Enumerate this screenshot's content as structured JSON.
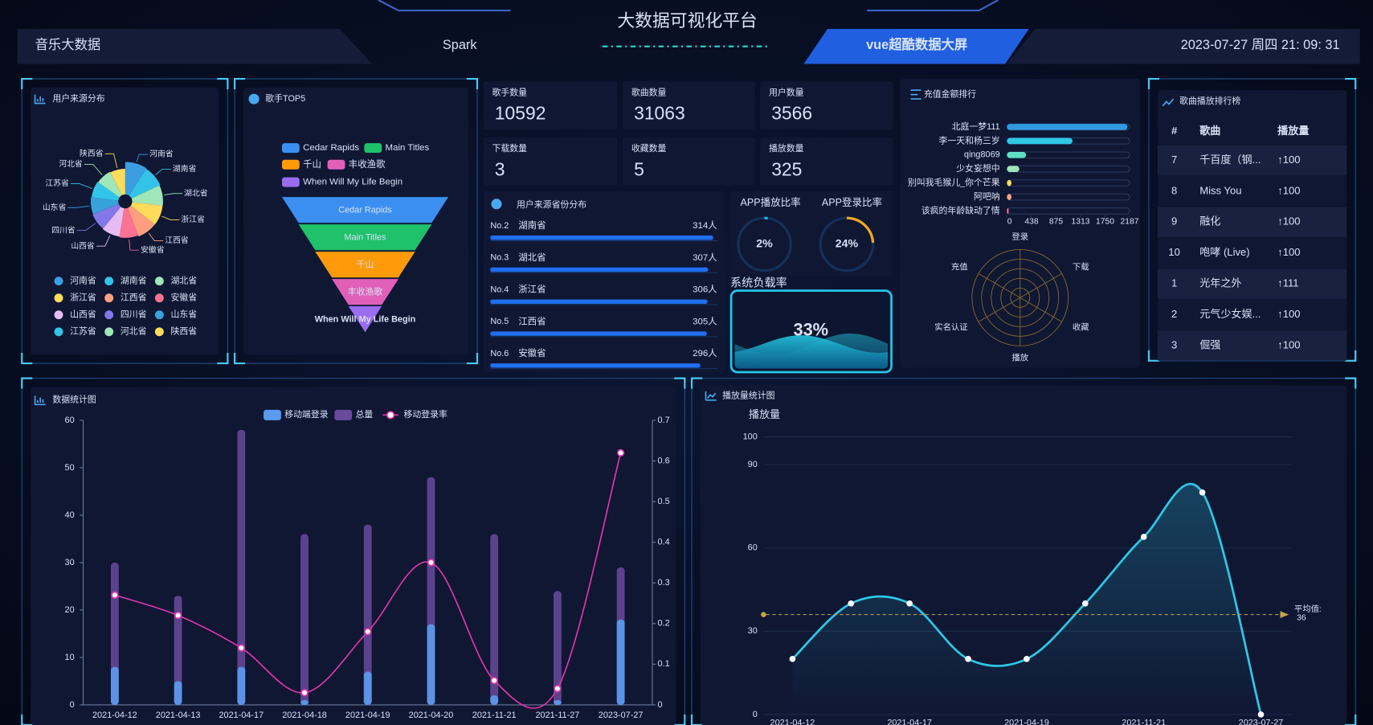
{
  "header": {
    "left": "音乐大数据",
    "center_left": "Spark",
    "title": "大数据可视化平台",
    "tab": "vue超酷数据大屏",
    "datetime": "2023-07-27 周四 21: 09: 31"
  },
  "source_pie": {
    "type": "pie",
    "title": "用户来源分布",
    "categories": [
      "河南省",
      "湖南省",
      "湖北省",
      "浙江省",
      "江西省",
      "安徽省",
      "山西省",
      "四川省",
      "山东省",
      "江苏省",
      "河北省",
      "陕西省"
    ],
    "values": [
      320,
      314,
      307,
      306,
      305,
      296,
      290,
      285,
      280,
      275,
      270,
      265
    ],
    "colors": [
      "#3a9ee0",
      "#34c3e8",
      "#9fe6b8",
      "#ffdb5c",
      "#ff9f7f",
      "#fb7293",
      "#e7bcf3",
      "#8378ea",
      "#37a2da",
      "#32c5e9",
      "#9fe6b8",
      "#ffdb5c"
    ]
  },
  "singer_funnel": {
    "type": "funnel",
    "title": "歌手TOP5",
    "categories": [
      "Cedar Rapids",
      "Main Titles",
      "千山",
      "丰收渔歌",
      "When Will My Life Begin"
    ],
    "values": [
      100,
      80,
      60,
      40,
      20
    ],
    "colors": [
      "#3b8ff0",
      "#1fc16b",
      "#ff9a0b",
      "#e060b8",
      "#9a6cf0"
    ]
  },
  "stats": [
    {
      "label": "歌手数量",
      "value": 10592
    },
    {
      "label": "歌曲数量",
      "value": 31063
    },
    {
      "label": "用户数量",
      "value": 3566
    },
    {
      "label": "下载数量",
      "value": 3
    },
    {
      "label": "收藏数量",
      "value": 5
    },
    {
      "label": "播放数量",
      "value": 325
    }
  ],
  "province_rank": {
    "title": "用户来源省份分布",
    "rows": [
      {
        "rank": "No.2",
        "name": "湖南省",
        "value": 314,
        "value_label": "314人"
      },
      {
        "rank": "No.3",
        "name": "湖北省",
        "value": 307,
        "value_label": "307人"
      },
      {
        "rank": "No.4",
        "name": "浙江省",
        "value": 306,
        "value_label": "306人"
      },
      {
        "rank": "No.5",
        "name": "江西省",
        "value": 305,
        "value_label": "305人"
      },
      {
        "rank": "No.6",
        "name": "安徽省",
        "value": 296,
        "value_label": "296人"
      }
    ]
  },
  "gauges": [
    {
      "title": "APP播放比率",
      "value": 2,
      "value_label": "2%",
      "color": "#1fb6d8"
    },
    {
      "title": "APP登录比率",
      "value": 24,
      "value_label": "24%",
      "color": "#f5a623"
    }
  ],
  "load": {
    "title": "系统负载率",
    "value": 33,
    "value_label": "33%"
  },
  "recharge": {
    "type": "bar",
    "orientation": "horizontal",
    "title": "充值金额排行",
    "categories": [
      "北庭一梦111",
      "李一天和杨三岁",
      "qing8069",
      "少女妄想中",
      "别叫我毛猴儿_你个芒果",
      "阿吧呐",
      "该疯的年龄缺动了情"
    ],
    "values": [
      2150,
      1170,
      340,
      220,
      80,
      80,
      30
    ],
    "colors": [
      "#2f9ae0",
      "#2ec7e6",
      "#5ee0c4",
      "#9fe6b8",
      "#ffdb5c",
      "#ff9f7f",
      "#fb7293"
    ],
    "xlim": [
      0,
      2187
    ],
    "xticks": [
      0,
      438,
      875,
      1313,
      1750,
      2187
    ]
  },
  "radar": {
    "type": "radar",
    "indicators": [
      "登录",
      "下载",
      "收藏",
      "播放",
      "实名认证",
      "充值"
    ]
  },
  "song_rank": {
    "title": "歌曲播放排行榜",
    "columns": [
      "#",
      "歌曲",
      "播放量"
    ],
    "rows": [
      [
        "7",
        "千百度（钢...",
        "↑100"
      ],
      [
        "8",
        "Miss You",
        "↑100"
      ],
      [
        "9",
        "融化",
        "↑100"
      ],
      [
        "10",
        "咆哮 (Live)",
        "↑100"
      ],
      [
        "1",
        "光年之外",
        "↑111"
      ],
      [
        "2",
        "元气少女娱...",
        "↑100"
      ],
      [
        "3",
        "倔强",
        "↑100"
      ]
    ]
  },
  "data_chart": {
    "type": "bar_line",
    "title": "数据统计图",
    "categories": [
      "2021-04-12",
      "2021-04-13",
      "2021-04-17",
      "2021-04-18",
      "2021-04-19",
      "2021-04-20",
      "2021-11-21",
      "2021-11-27",
      "2023-07-27"
    ],
    "series": [
      {
        "name": "移动端登录",
        "type": "bar",
        "color": "#5b9cf0",
        "values": [
          8,
          5,
          8,
          1,
          7,
          17,
          2,
          1,
          18
        ]
      },
      {
        "name": "总量",
        "type": "bar",
        "color": "#6a4a9c",
        "values": [
          30,
          23,
          58,
          36,
          38,
          48,
          36,
          24,
          29
        ]
      },
      {
        "name": "移动登录率",
        "type": "line",
        "axis": "y2",
        "color": "#e535ab",
        "values": [
          0.27,
          0.22,
          0.14,
          0.03,
          0.18,
          0.35,
          0.06,
          0.04,
          0.62
        ]
      }
    ],
    "ylim": [
      0,
      60
    ],
    "yticks": [
      0,
      10,
      20,
      30,
      40,
      50,
      60
    ],
    "y2lim": [
      0,
      0.7
    ],
    "y2ticks": [
      0,
      0.1,
      0.2,
      0.3,
      0.4,
      0.5,
      0.6,
      0.7
    ]
  },
  "play_chart": {
    "type": "line",
    "title": "播放量统计图",
    "y_label": "播放量",
    "categories": [
      "2021-04-12",
      null,
      "2021-04-17",
      null,
      "2021-04-19",
      null,
      "2021-11-21",
      null,
      "2023-07-27"
    ],
    "values": [
      20,
      40,
      40,
      20,
      20,
      40,
      64,
      80,
      0
    ],
    "color": "#2ec7e6",
    "ylim": [
      0,
      100
    ],
    "yticks": [
      0,
      30,
      60,
      90,
      100
    ],
    "mark_line": {
      "label": "平均值:",
      "value": 36
    }
  }
}
